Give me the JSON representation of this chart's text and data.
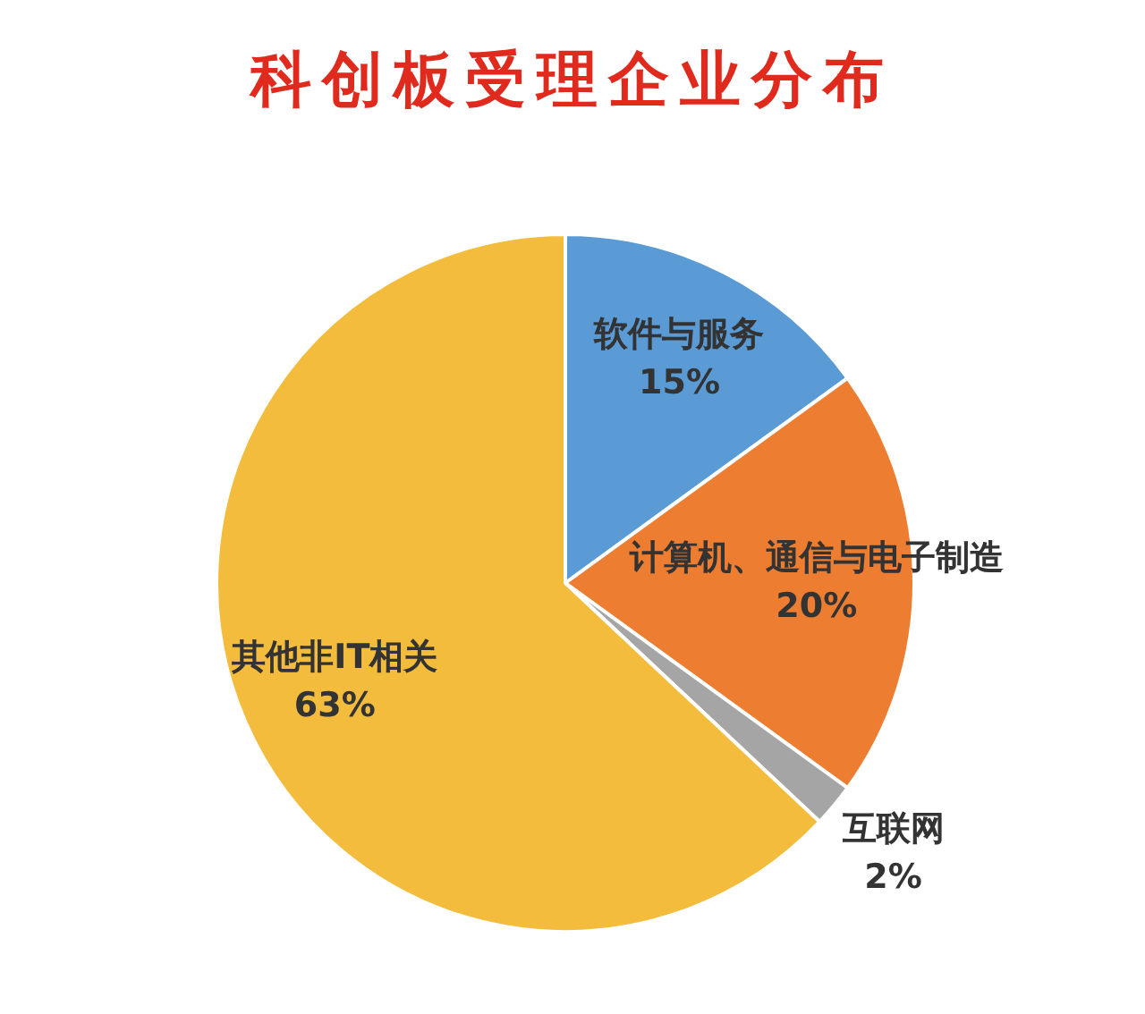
{
  "chart_data": {
    "type": "pie",
    "title": "科创板受理企业分布",
    "categories": [
      "软件与服务",
      "计算机、通信与电子制造",
      "互联网",
      "其他非IT相关"
    ],
    "values": [
      15,
      20,
      2,
      63
    ],
    "value_labels": [
      "15%",
      "20%",
      "2%",
      "63%"
    ],
    "colors": [
      "#5b9bd5",
      "#ed7d31",
      "#a5a5a5",
      "#f4bc3c"
    ],
    "legend": false
  }
}
